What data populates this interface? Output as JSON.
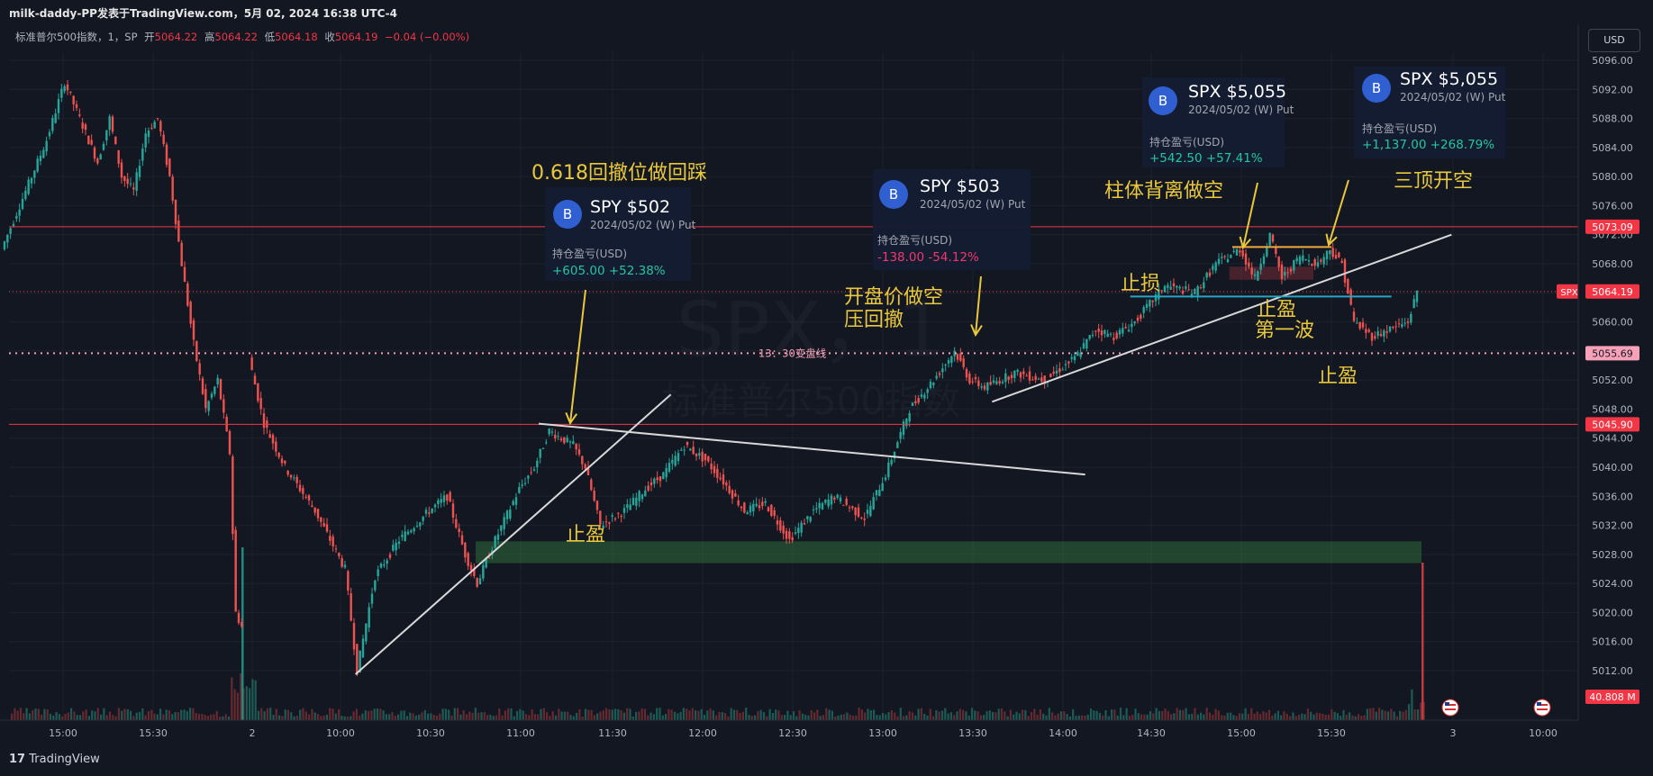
{
  "header": {
    "title": "milk-daddy-PP发表于TradingView.com，5月 02, 2024 16:38 UTC-4",
    "symbol_line": "标准普尔500指数，1，SP",
    "open_label": "开",
    "open": "5064.22",
    "high_label": "高",
    "high": "5064.22",
    "low_label": "低",
    "low": "5064.18",
    "close_label": "收",
    "close": "5064.19",
    "change": "−0.04 (−0.00%)",
    "currency": "USD"
  },
  "watermark": {
    "line1": "SPX，1",
    "line2": "标准普尔500指数"
  },
  "chart_data": {
    "type": "candlestick",
    "interval_minutes": 1,
    "y_range": [
      5008,
      5099
    ],
    "y_ticks": [
      "5096.00",
      "5092.00",
      "5088.00",
      "5084.00",
      "5080.00",
      "5076.00",
      "5072.00",
      "5068.00",
      "5064.00",
      "5060.00",
      "5056.00",
      "5052.00",
      "5048.00",
      "5044.00",
      "5040.00",
      "5036.00",
      "5032.00",
      "5028.00",
      "5024.00",
      "5020.00",
      "5016.00",
      "5012.00"
    ],
    "x_ticks": [
      "15:00",
      "15:30",
      "2",
      "10:00",
      "10:30",
      "11:00",
      "11:30",
      "12:00",
      "12:30",
      "13:00",
      "13:30",
      "14:00",
      "14:30",
      "15:00",
      "15:30",
      "3",
      "10:00"
    ],
    "price_path": [
      {
        "t": "14:40",
        "p": 5070
      },
      {
        "t": "14:48",
        "p": 5078
      },
      {
        "t": "14:55",
        "p": 5085
      },
      {
        "t": "15:01",
        "p": 5093
      },
      {
        "t": "15:04",
        "p": 5090
      },
      {
        "t": "15:08",
        "p": 5086
      },
      {
        "t": "15:12",
        "p": 5082
      },
      {
        "t": "15:16",
        "p": 5088
      },
      {
        "t": "15:20",
        "p": 5080
      },
      {
        "t": "15:24",
        "p": 5078
      },
      {
        "t": "15:28",
        "p": 5086
      },
      {
        "t": "15:32",
        "p": 5088
      },
      {
        "t": "15:36",
        "p": 5080
      },
      {
        "t": "15:40",
        "p": 5068
      },
      {
        "t": "15:44",
        "p": 5057
      },
      {
        "t": "15:48",
        "p": 5048
      },
      {
        "t": "15:52",
        "p": 5052
      },
      {
        "t": "15:56",
        "p": 5042
      },
      {
        "t": "15:58",
        "p": 5020
      },
      {
        "t": "16:00",
        "p": 5018
      },
      {
        "t": "09:30",
        "p": 5055
      },
      {
        "t": "09:35",
        "p": 5046
      },
      {
        "t": "09:42",
        "p": 5040
      },
      {
        "t": "09:52",
        "p": 5034
      },
      {
        "t": "10:02",
        "p": 5026
      },
      {
        "t": "10:06",
        "p": 5012
      },
      {
        "t": "10:12",
        "p": 5025
      },
      {
        "t": "10:20",
        "p": 5030
      },
      {
        "t": "10:30",
        "p": 5034
      },
      {
        "t": "10:36",
        "p": 5036
      },
      {
        "t": "10:42",
        "p": 5028
      },
      {
        "t": "10:46",
        "p": 5024
      },
      {
        "t": "10:52",
        "p": 5030
      },
      {
        "t": "11:00",
        "p": 5037
      },
      {
        "t": "11:05",
        "p": 5040
      },
      {
        "t": "11:10",
        "p": 5045
      },
      {
        "t": "11:18",
        "p": 5043
      },
      {
        "t": "11:22",
        "p": 5040
      },
      {
        "t": "11:27",
        "p": 5032
      },
      {
        "t": "11:35",
        "p": 5034
      },
      {
        "t": "11:42",
        "p": 5037
      },
      {
        "t": "11:48",
        "p": 5039
      },
      {
        "t": "11:55",
        "p": 5043
      },
      {
        "t": "12:02",
        "p": 5041
      },
      {
        "t": "12:08",
        "p": 5038
      },
      {
        "t": "12:15",
        "p": 5034
      },
      {
        "t": "12:22",
        "p": 5035
      },
      {
        "t": "12:30",
        "p": 5030
      },
      {
        "t": "12:38",
        "p": 5034
      },
      {
        "t": "12:45",
        "p": 5036
      },
      {
        "t": "12:55",
        "p": 5033
      },
      {
        "t": "13:02",
        "p": 5039
      },
      {
        "t": "13:10",
        "p": 5048
      },
      {
        "t": "13:18",
        "p": 5052
      },
      {
        "t": "13:25",
        "p": 5056
      },
      {
        "t": "13:30",
        "p": 5052
      },
      {
        "t": "13:35",
        "p": 5051
      },
      {
        "t": "13:45",
        "p": 5053
      },
      {
        "t": "13:55",
        "p": 5052
      },
      {
        "t": "14:05",
        "p": 5055
      },
      {
        "t": "14:12",
        "p": 5059
      },
      {
        "t": "14:18",
        "p": 5058
      },
      {
        "t": "14:25",
        "p": 5060
      },
      {
        "t": "14:35",
        "p": 5065
      },
      {
        "t": "14:45",
        "p": 5064
      },
      {
        "t": "14:52",
        "p": 5068
      },
      {
        "t": "15:00",
        "p": 5070
      },
      {
        "t": "15:05",
        "p": 5066
      },
      {
        "t": "15:10",
        "p": 5072
      },
      {
        "t": "15:14",
        "p": 5066
      },
      {
        "t": "15:20",
        "p": 5069
      },
      {
        "t": "15:26",
        "p": 5068
      },
      {
        "t": "15:30",
        "p": 5070
      },
      {
        "t": "15:34",
        "p": 5068
      },
      {
        "t": "15:38",
        "p": 5060
      },
      {
        "t": "15:44",
        "p": 5058
      },
      {
        "t": "15:50",
        "p": 5059
      },
      {
        "t": "15:56",
        "p": 5060
      },
      {
        "t": "15:59",
        "p": 5064.19
      }
    ],
    "horizontal_lines": [
      {
        "price": 5073.09,
        "label": "5073.09",
        "color": "#f23645",
        "style": "solid"
      },
      {
        "price": 5045.9,
        "label": "5045.90",
        "color": "#f23645",
        "style": "solid"
      },
      {
        "price": 5055.69,
        "label": "5055.69",
        "color": "#f7a1b8",
        "style": "dotted",
        "text": "13：30变盘线"
      },
      {
        "price": 5064.19,
        "label": "5064.19",
        "color": "#f23645",
        "style": "dotted-last",
        "tag": "SPX"
      }
    ],
    "zones": [
      {
        "from_t": "10:45",
        "to_t": "16:00",
        "low": 5026.8,
        "high": 5029.8,
        "color": "#2e6b3a"
      },
      {
        "from_t": "14:56",
        "to_t": "15:24",
        "low": 5065.8,
        "high": 5067.6,
        "color": "#6b2a36"
      }
    ],
    "trend_lines": [
      {
        "t1": "10:05",
        "p1": 5011.5,
        "t2": "11:50",
        "p2": 5050,
        "color": "#d8d8d8"
      },
      {
        "t1": "11:06",
        "p1": 5046,
        "t2": "14:08",
        "p2": 5039,
        "color": "#d8d8d8"
      },
      {
        "t1": "13:37",
        "p1": 5049,
        "t2": "16:10",
        "p2": 5072,
        "color": "#d8d8d8"
      },
      {
        "t1": "14:23",
        "p1": 5063.5,
        "t2": "15:50",
        "p2": 5063.5,
        "color": "#26a6c4"
      },
      {
        "t1": "14:57",
        "p1": 5070.3,
        "t2": "15:30",
        "p2": 5070.3,
        "color": "#f2a93b"
      }
    ],
    "volume_label": "40.808 M"
  },
  "cards": [
    {
      "ticker": "SPY $502",
      "date": "2024/05/02 (W) Put",
      "pl_label": "持仓盈亏(USD)",
      "pl": "+605.00 +52.38%",
      "pl_color": "#26c6a0",
      "badge": "B"
    },
    {
      "ticker": "SPY $503",
      "date": "2024/05/02 (W) Put",
      "pl_label": "持仓盈亏(USD)",
      "pl": "-138.00 -54.12%",
      "pl_color": "#f2386f",
      "badge": "B"
    },
    {
      "ticker": "SPX $5,055",
      "date": "2024/05/02 (W) Put",
      "pl_label": "持仓盈亏(USD)",
      "pl": "+542.50 +57.41%",
      "pl_color": "#26c6a0",
      "badge": "B"
    },
    {
      "ticker": "SPX $5,055",
      "date": "2024/05/02 (W) Put",
      "pl_label": "持仓盈亏(USD)",
      "pl": "+1,137.00 +268.79%",
      "pl_color": "#26c6a0",
      "badge": "B"
    }
  ],
  "annotations": {
    "fib": "0.618回撤位做回踩",
    "open_short_1": "开盘价做空",
    "open_short_2": "压回撤",
    "divergence": "柱体背离做空",
    "triple_top": "三顶开空",
    "stop_loss": "止损",
    "take_profit_a": "止盈",
    "take_profit_b": "止盈",
    "first_wave": "第一波",
    "take_profit_c": "止盈"
  },
  "footer": {
    "brand": "TradingView"
  }
}
